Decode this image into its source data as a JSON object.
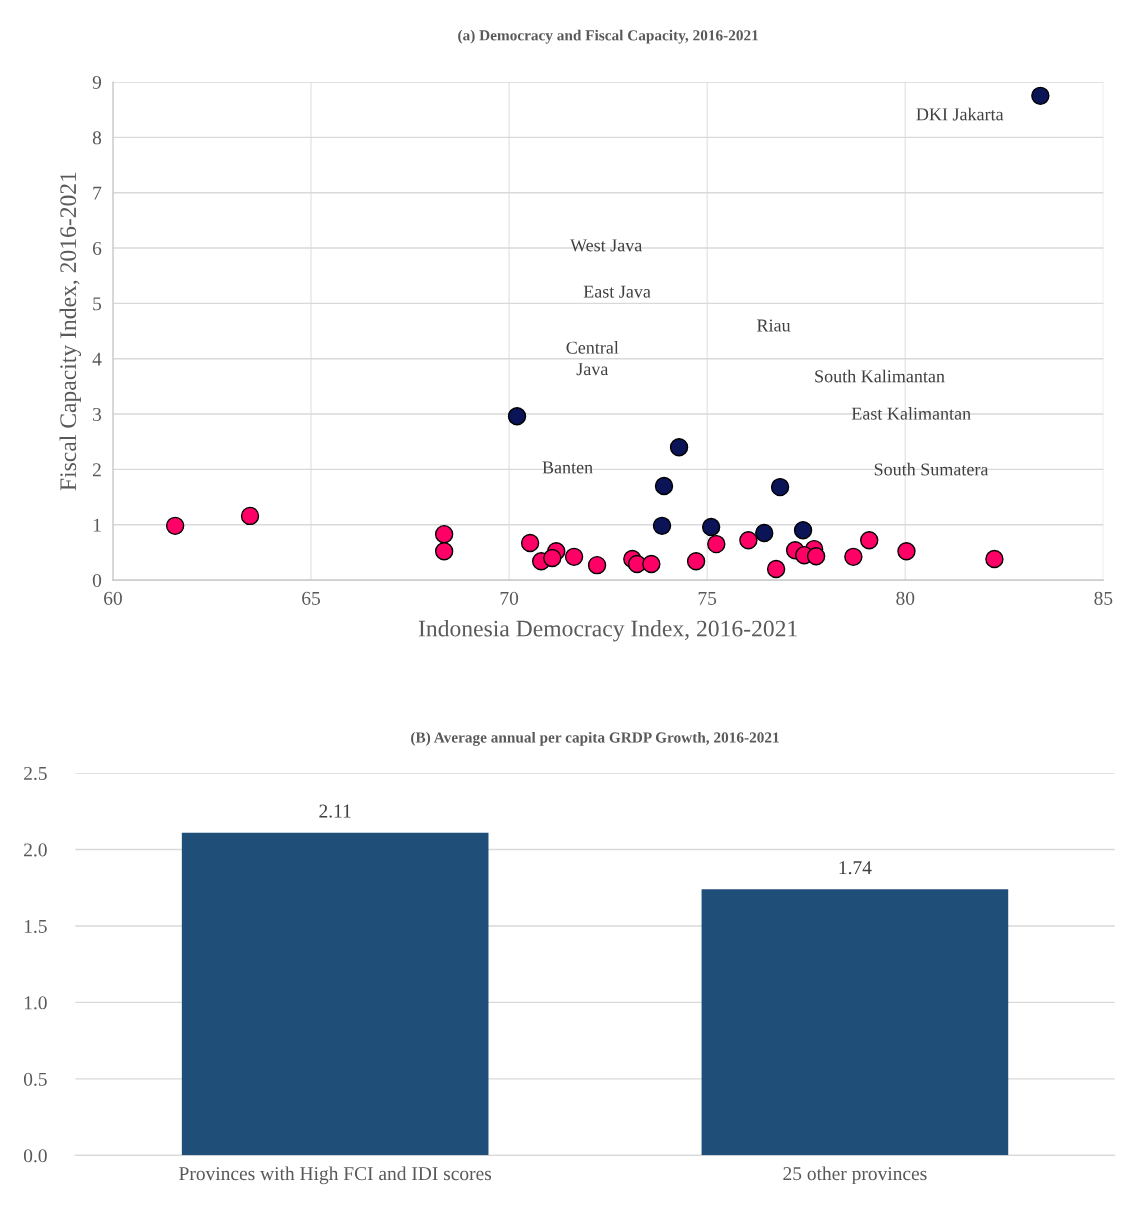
{
  "chart_data": [
    {
      "type": "scatter",
      "title": "(a) Democracy and Fiscal Capacity, 2016-2021",
      "xlabel": "Indonesia Democracy Index, 2016-2021",
      "ylabel": "Fiscal Capacity Index, 2016-2021",
      "xlim": [
        60,
        85
      ],
      "xticks": [
        60,
        65,
        70,
        75,
        80,
        85
      ],
      "ylim": [
        0,
        9
      ],
      "yticks": [
        0,
        1,
        2,
        3,
        4,
        5,
        6,
        7,
        8,
        9
      ],
      "grid": true,
      "marker": "circle",
      "series": [
        {
          "color": "#0b1456",
          "x": [
            83.41,
            70.2,
            74.29,
            73.91,
            76.84,
            73.86,
            75.1,
            76.44,
            77.42
          ],
          "values": [
            8.75,
            2.96,
            2.4,
            1.7,
            1.68,
            0.98,
            0.96,
            0.85,
            0.9
          ]
        },
        {
          "color": "#ff0066",
          "x": [
            61.57,
            63.46,
            68.36,
            68.36,
            70.53,
            70.81,
            71.19,
            71.09,
            71.64,
            72.22,
            73.11,
            73.23,
            73.59,
            74.72,
            75.23,
            76.04,
            76.74,
            77.22,
            77.7,
            77.45,
            77.75,
            78.69,
            79.09,
            80.03,
            82.25
          ],
          "values": [
            0.98,
            1.16,
            0.83,
            0.52,
            0.67,
            0.34,
            0.52,
            0.4,
            0.42,
            0.27,
            0.38,
            0.29,
            0.29,
            0.34,
            0.65,
            0.72,
            0.2,
            0.54,
            0.56,
            0.45,
            0.43,
            0.42,
            0.72,
            0.52,
            0.38
          ]
        }
      ],
      "annotations": [
        "DKI Jakarta",
        "West Java",
        "East Java",
        "Riau",
        "Central\nJava",
        "South Kalimantan",
        "East Kalimantan",
        "South Sumatera",
        "Banten"
      ]
    },
    {
      "type": "bar",
      "title": "(B) Average annual per capita GRDP Growth, 2016-2021",
      "categories": [
        "Provinces with High FCI and IDI scores",
        "25 other provinces"
      ],
      "values": [
        2.11,
        1.74
      ],
      "color": "#1f4e79",
      "ylim": [
        0,
        2.5
      ],
      "yticks": [
        {
          "value": 0,
          "label": "0.0"
        },
        {
          "value": 0.5,
          "label": "0.5"
        },
        {
          "value": 1,
          "label": "1.0"
        },
        {
          "value": 1.5,
          "label": "1.5"
        },
        {
          "value": 2,
          "label": "2.0"
        },
        {
          "value": 2.5,
          "label": "2.5"
        }
      ],
      "grid": "y",
      "data_labels": true
    }
  ]
}
